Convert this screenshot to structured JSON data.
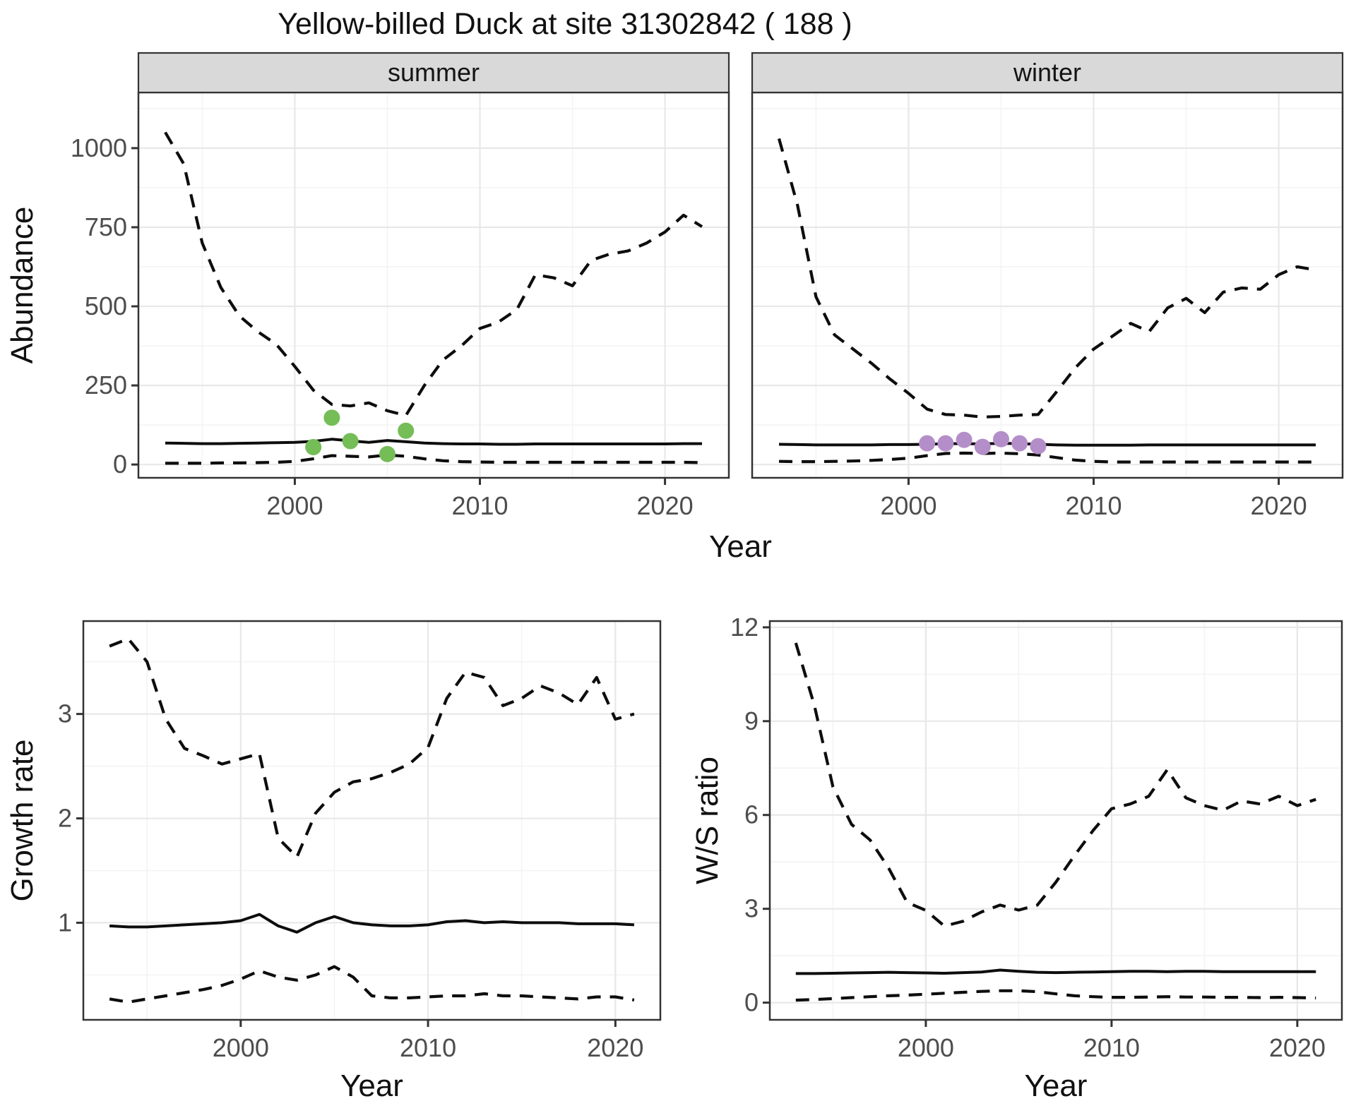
{
  "title": "Yellow-billed Duck at site 31302842 ( 188 )",
  "colors": {
    "summer_points": "#74bd57",
    "winter_points": "#b48ec9",
    "line": "#0d0d0d",
    "strip_bg": "#d9d9d9",
    "strip_text": "#141414",
    "panel_border": "#333333",
    "grid_major": "#e8e8e8",
    "grid_minor": "#f3f3f3",
    "tick_mark": "#333333",
    "tick_text": "#4d4d4d",
    "label_text": "#111111"
  },
  "chart_data": [
    {
      "id": "abundance-summer",
      "type": "line",
      "facet_label": "summer",
      "ylabel": "Abundance",
      "xlabel": "Year",
      "shared_xlabel": true,
      "show_yaxis_labels": true,
      "x": [
        1993,
        1994,
        1995,
        1996,
        1997,
        1998,
        1999,
        2000,
        2001,
        2002,
        2003,
        2004,
        2005,
        2006,
        2007,
        2008,
        2009,
        2010,
        2011,
        2012,
        2013,
        2014,
        2015,
        2016,
        2017,
        2018,
        2019,
        2020,
        2021,
        2022
      ],
      "series": [
        {
          "name": "upper-95ci",
          "style": "dashed",
          "values": [
            1050,
            950,
            700,
            560,
            470,
            420,
            380,
            310,
            235,
            190,
            185,
            195,
            170,
            155,
            250,
            330,
            375,
            430,
            450,
            490,
            600,
            590,
            565,
            645,
            665,
            675,
            700,
            735,
            788,
            752
          ]
        },
        {
          "name": "median",
          "style": "solid",
          "values": [
            68,
            67,
            66,
            66,
            67,
            68,
            69,
            70,
            73,
            80,
            75,
            70,
            76,
            72,
            68,
            66,
            65,
            65,
            64,
            64,
            65,
            65,
            65,
            65,
            65,
            65,
            65,
            65,
            66,
            66
          ]
        },
        {
          "name": "lower-95ci",
          "style": "dashed",
          "values": [
            4,
            4,
            4,
            5,
            5,
            6,
            7,
            10,
            18,
            28,
            26,
            24,
            30,
            26,
            18,
            12,
            9,
            8,
            7,
            7,
            7,
            7,
            7,
            7,
            7,
            7,
            7,
            7,
            7,
            6
          ]
        }
      ],
      "points": {
        "name": "observed-counts",
        "color_key": "summer_points",
        "x": [
          2001,
          2002,
          2003,
          2005,
          2006
        ],
        "y": [
          55,
          148,
          74,
          33,
          107
        ]
      },
      "xlim": [
        1991.55,
        2023.45
      ],
      "ylim": [
        -42,
        1176
      ],
      "xticks": [
        2000,
        2010,
        2020
      ],
      "yticks": [
        0,
        250,
        500,
        750,
        1000
      ],
      "xminor": [
        1995,
        2005,
        2015
      ],
      "yminor": [
        125,
        375,
        625,
        875,
        1125
      ],
      "grid": true
    },
    {
      "id": "abundance-winter",
      "type": "line",
      "facet_label": "winter",
      "ylabel": "Abundance",
      "xlabel": "Year",
      "shared_xlabel": true,
      "show_yaxis_labels": false,
      "x": [
        1993,
        1994,
        1995,
        1996,
        1997,
        1998,
        1999,
        2000,
        2001,
        2002,
        2003,
        2004,
        2005,
        2006,
        2007,
        2008,
        2009,
        2010,
        2011,
        2012,
        2013,
        2014,
        2015,
        2016,
        2017,
        2018,
        2019,
        2020,
        2021,
        2022
      ],
      "series": [
        {
          "name": "upper-95ci",
          "style": "dashed",
          "values": [
            1030,
            820,
            530,
            410,
            365,
            320,
            270,
            225,
            175,
            158,
            156,
            150,
            152,
            156,
            158,
            230,
            305,
            365,
            405,
            446,
            420,
            495,
            525,
            480,
            545,
            558,
            554,
            600,
            625,
            615
          ]
        },
        {
          "name": "median",
          "style": "solid",
          "values": [
            64,
            63,
            62,
            62,
            62,
            62,
            63,
            63,
            64,
            66,
            66,
            65,
            67,
            66,
            64,
            62,
            61,
            61,
            61,
            61,
            62,
            62,
            62,
            62,
            62,
            62,
            62,
            62,
            62,
            62
          ]
        },
        {
          "name": "lower-95ci",
          "style": "dashed",
          "values": [
            10,
            9,
            9,
            10,
            11,
            13,
            16,
            20,
            28,
            35,
            36,
            35,
            36,
            34,
            30,
            22,
            14,
            10,
            8,
            8,
            8,
            8,
            8,
            8,
            8,
            8,
            8,
            8,
            8,
            8
          ]
        }
      ],
      "points": {
        "name": "observed-counts",
        "color_key": "winter_points",
        "x": [
          2001,
          2002,
          2003,
          2004,
          2005,
          2006,
          2007
        ],
        "y": [
          67,
          67,
          78,
          56,
          80,
          67,
          58
        ]
      },
      "xlim": [
        1991.55,
        2023.45
      ],
      "ylim": [
        -42,
        1176
      ],
      "xticks": [
        2000,
        2010,
        2020
      ],
      "yticks": [
        0,
        250,
        500,
        750,
        1000
      ],
      "xminor": [
        1995,
        2005,
        2015
      ],
      "yminor": [
        125,
        375,
        625,
        875,
        1125
      ],
      "grid": true
    },
    {
      "id": "growth-rate",
      "type": "line",
      "facet_label": null,
      "ylabel": "Growth rate",
      "xlabel": "Year",
      "shared_xlabel": false,
      "show_yaxis_labels": true,
      "x": [
        1993,
        1994,
        1995,
        1996,
        1997,
        1998,
        1999,
        2000,
        2001,
        2002,
        2003,
        2004,
        2005,
        2006,
        2007,
        2008,
        2009,
        2010,
        2011,
        2012,
        2013,
        2014,
        2015,
        2016,
        2017,
        2018,
        2019,
        2020,
        2021
      ],
      "series": [
        {
          "name": "upper-95ci",
          "style": "dashed",
          "values": [
            3.65,
            3.72,
            3.5,
            2.95,
            2.67,
            2.6,
            2.52,
            2.57,
            2.62,
            1.81,
            1.63,
            2.05,
            2.25,
            2.35,
            2.38,
            2.44,
            2.52,
            2.68,
            3.15,
            3.4,
            3.35,
            3.08,
            3.15,
            3.27,
            3.2,
            3.09,
            3.35,
            2.95,
            3.0
          ]
        },
        {
          "name": "median",
          "style": "solid",
          "values": [
            0.97,
            0.96,
            0.96,
            0.97,
            0.98,
            0.99,
            1.0,
            1.02,
            1.08,
            0.97,
            0.91,
            1.0,
            1.06,
            1.0,
            0.98,
            0.97,
            0.97,
            0.98,
            1.01,
            1.02,
            1.0,
            1.01,
            1.0,
            1.0,
            1.0,
            0.99,
            0.99,
            0.99,
            0.98
          ]
        },
        {
          "name": "lower-95ci",
          "style": "dashed",
          "values": [
            0.27,
            0.24,
            0.27,
            0.3,
            0.33,
            0.36,
            0.4,
            0.46,
            0.54,
            0.48,
            0.45,
            0.5,
            0.58,
            0.48,
            0.3,
            0.28,
            0.28,
            0.29,
            0.3,
            0.3,
            0.32,
            0.3,
            0.3,
            0.29,
            0.28,
            0.27,
            0.29,
            0.29,
            0.26
          ]
        }
      ],
      "points": null,
      "xlim": [
        1991.6,
        2022.4
      ],
      "ylim": [
        0.07,
        3.89
      ],
      "xticks": [
        2000,
        2010,
        2020
      ],
      "yticks": [
        1,
        2,
        3
      ],
      "xminor": [
        1995,
        2005,
        2015
      ],
      "yminor": [
        0.5,
        1.5,
        2.5,
        3.5
      ],
      "grid": true
    },
    {
      "id": "ws-ratio",
      "type": "line",
      "facet_label": null,
      "ylabel": "W/S ratio",
      "xlabel": "Year",
      "shared_xlabel": false,
      "show_yaxis_labels": true,
      "x": [
        1993,
        1994,
        1995,
        1996,
        1997,
        1998,
        1999,
        2000,
        2001,
        2002,
        2003,
        2004,
        2005,
        2006,
        2007,
        2008,
        2009,
        2010,
        2011,
        2012,
        2013,
        2014,
        2015,
        2016,
        2017,
        2018,
        2019,
        2020,
        2021
      ],
      "series": [
        {
          "name": "upper-95ci",
          "style": "dashed",
          "values": [
            11.5,
            9.5,
            6.9,
            5.7,
            5.2,
            4.3,
            3.2,
            2.95,
            2.45,
            2.6,
            2.9,
            3.12,
            2.96,
            3.12,
            3.85,
            4.7,
            5.5,
            6.2,
            6.35,
            6.6,
            7.45,
            6.55,
            6.3,
            6.15,
            6.45,
            6.35,
            6.6,
            6.3,
            6.5
          ]
        },
        {
          "name": "median",
          "style": "solid",
          "values": [
            0.93,
            0.93,
            0.94,
            0.95,
            0.96,
            0.97,
            0.96,
            0.95,
            0.94,
            0.96,
            0.98,
            1.04,
            1.0,
            0.97,
            0.96,
            0.97,
            0.98,
            0.99,
            1.0,
            1.0,
            0.99,
            1.0,
            1.0,
            0.99,
            0.99,
            0.99,
            0.99,
            0.99,
            0.99
          ]
        },
        {
          "name": "lower-95ci",
          "style": "dashed",
          "values": [
            0.08,
            0.1,
            0.13,
            0.16,
            0.19,
            0.22,
            0.24,
            0.27,
            0.3,
            0.33,
            0.36,
            0.38,
            0.38,
            0.35,
            0.28,
            0.22,
            0.19,
            0.17,
            0.17,
            0.18,
            0.19,
            0.18,
            0.18,
            0.17,
            0.17,
            0.16,
            0.17,
            0.16,
            0.15
          ]
        }
      ],
      "points": null,
      "xlim": [
        1991.6,
        2022.4
      ],
      "ylim": [
        -0.55,
        12.2
      ],
      "xticks": [
        2000,
        2010,
        2020
      ],
      "yticks": [
        0,
        3,
        6,
        9,
        12
      ],
      "xminor": [
        1995,
        2005,
        2015
      ],
      "yminor": [
        1.5,
        4.5,
        7.5,
        10.5
      ],
      "grid": true
    }
  ]
}
